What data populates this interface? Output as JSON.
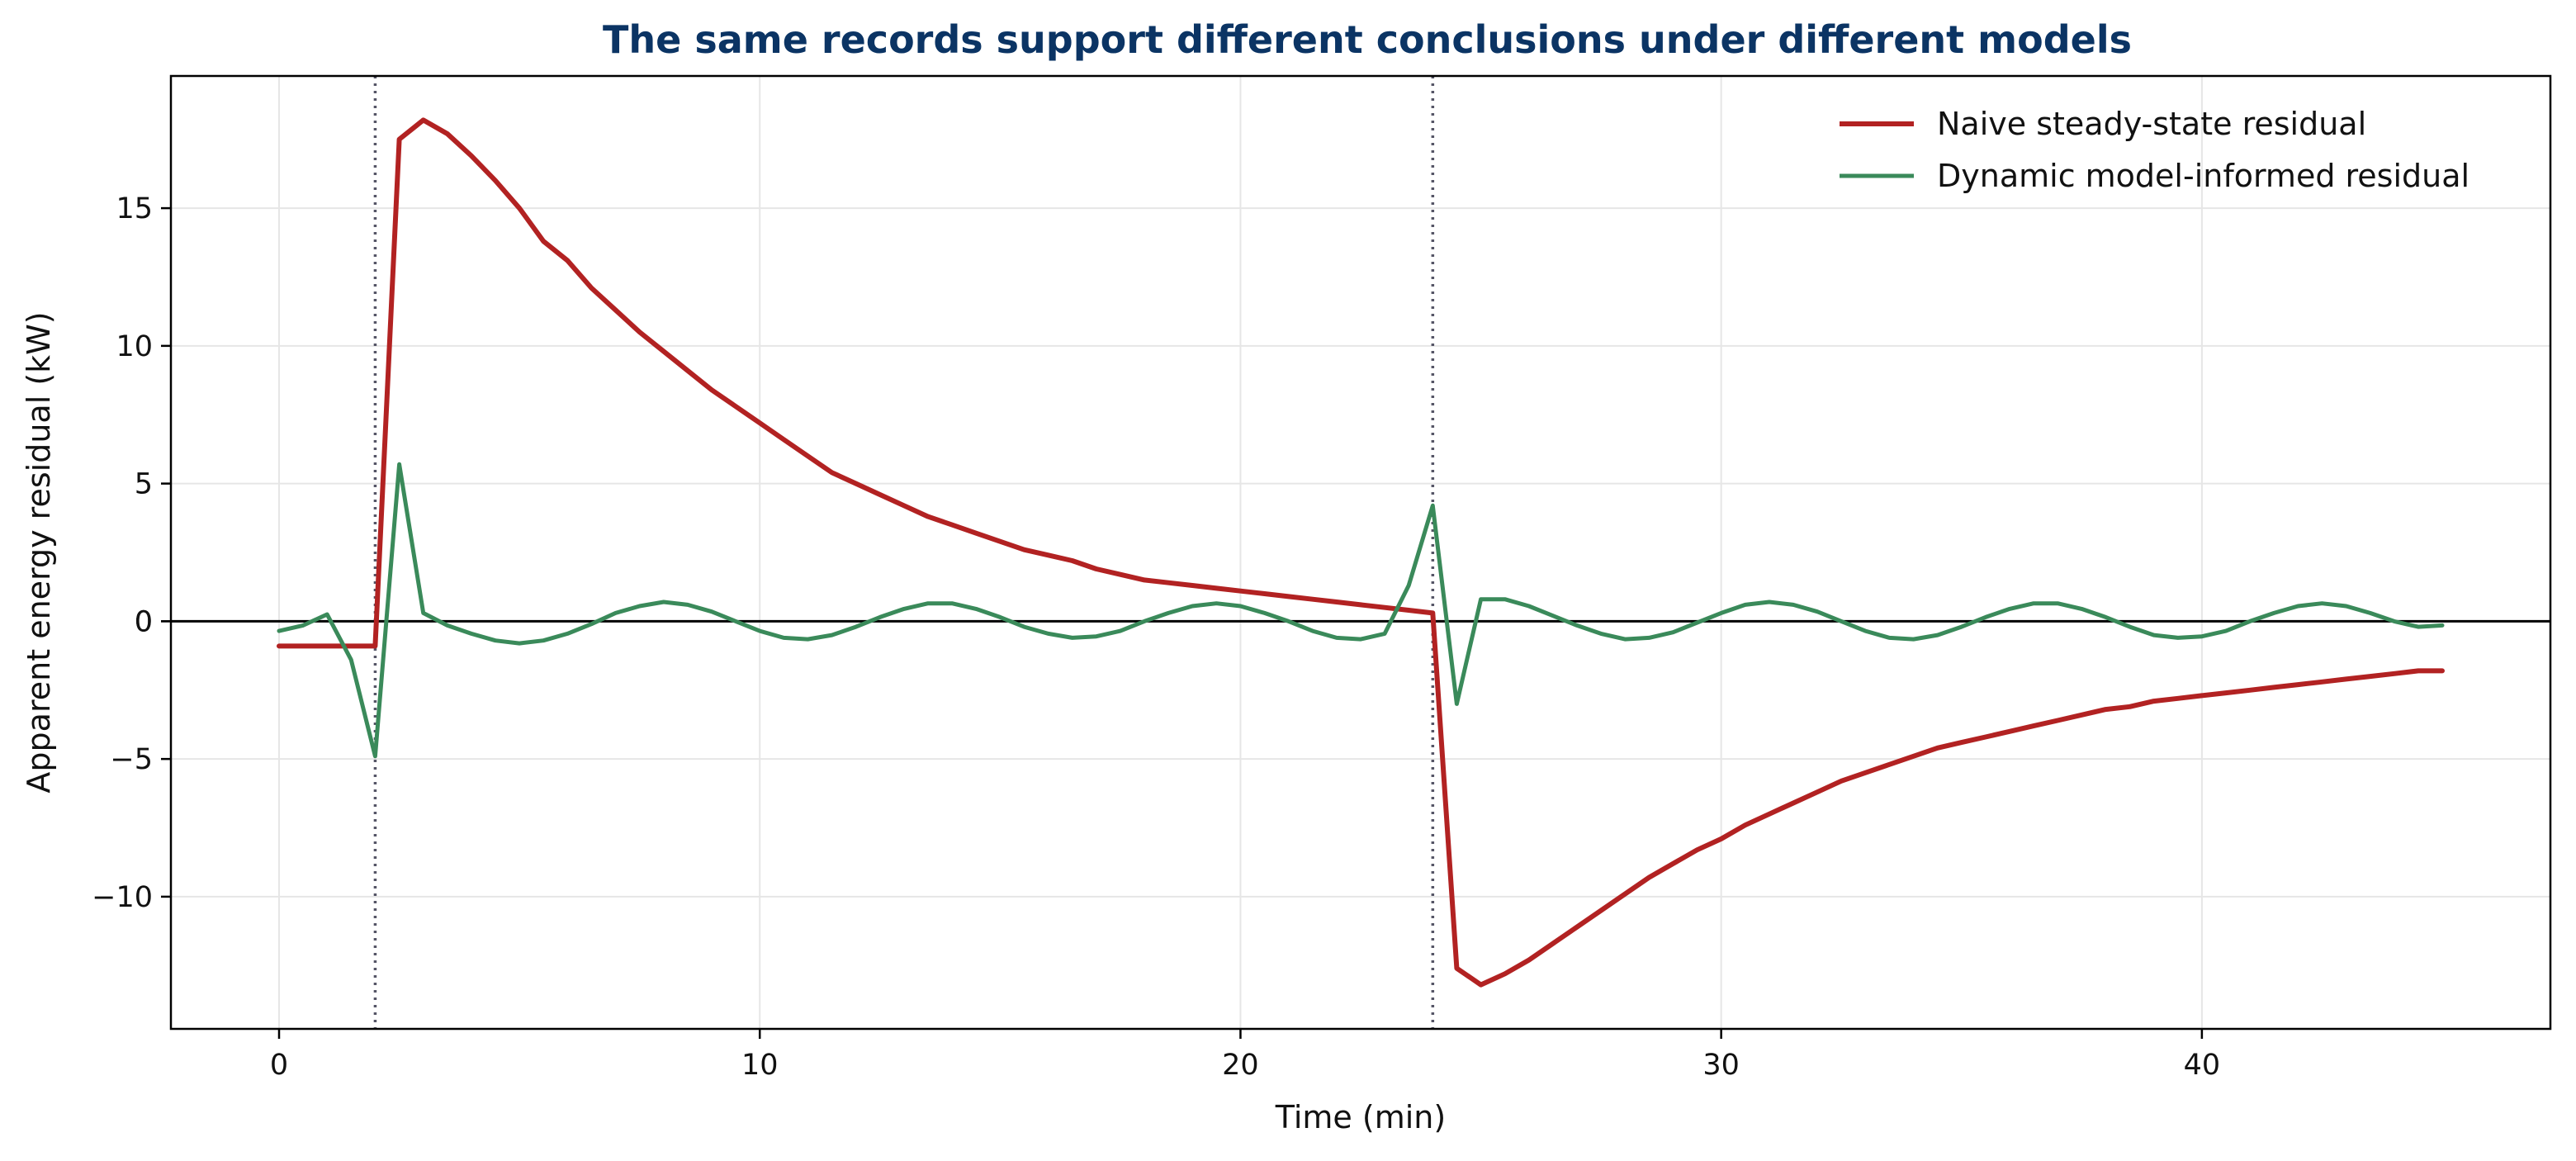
{
  "chart_data": {
    "type": "line",
    "title": "The same records support different conclusions under different models",
    "xlabel": "Time (min)",
    "ylabel": "Apparent energy residual (kW)",
    "xlim": [
      -2.25,
      47.25
    ],
    "ylim": [
      -14.8,
      19.8
    ],
    "xticks": [
      0,
      10,
      20,
      30,
      40
    ],
    "yticks": [
      -10,
      -5,
      0,
      5,
      10,
      15
    ],
    "grid": true,
    "legend_position": "top-right",
    "event_lines_x": [
      2,
      24
    ],
    "zero_line": true,
    "colors": {
      "naive": "#b22222",
      "dynamic": "#3a8a5a",
      "event": "#555566",
      "axis": "#000000",
      "title": "#0b3464"
    },
    "series": [
      {
        "name": "Naive steady-state residual",
        "color": "#b22222",
        "points": [
          [
            0,
            -0.9
          ],
          [
            0.5,
            -0.9
          ],
          [
            1,
            -0.9
          ],
          [
            1.5,
            -0.9
          ],
          [
            2,
            -0.9
          ],
          [
            2.5,
            17.5
          ],
          [
            3,
            18.2
          ],
          [
            3.5,
            17.7
          ],
          [
            4,
            16.9
          ],
          [
            4.5,
            16.0
          ],
          [
            5,
            15.0
          ],
          [
            5.5,
            13.8
          ],
          [
            6,
            13.1
          ],
          [
            6.5,
            12.1
          ],
          [
            7,
            11.3
          ],
          [
            7.5,
            10.5
          ],
          [
            8,
            9.8
          ],
          [
            8.5,
            9.1
          ],
          [
            9,
            8.4
          ],
          [
            9.5,
            7.8
          ],
          [
            10,
            7.2
          ],
          [
            10.5,
            6.6
          ],
          [
            11,
            6.0
          ],
          [
            11.5,
            5.4
          ],
          [
            12,
            5.0
          ],
          [
            12.5,
            4.6
          ],
          [
            13,
            4.2
          ],
          [
            13.5,
            3.8
          ],
          [
            14,
            3.5
          ],
          [
            14.5,
            3.2
          ],
          [
            15,
            2.9
          ],
          [
            15.5,
            2.6
          ],
          [
            16,
            2.4
          ],
          [
            16.5,
            2.2
          ],
          [
            17,
            1.9
          ],
          [
            17.5,
            1.7
          ],
          [
            18,
            1.5
          ],
          [
            18.5,
            1.4
          ],
          [
            19,
            1.3
          ],
          [
            19.5,
            1.2
          ],
          [
            20,
            1.1
          ],
          [
            20.5,
            1.0
          ],
          [
            21,
            0.9
          ],
          [
            21.5,
            0.8
          ],
          [
            22,
            0.7
          ],
          [
            22.5,
            0.6
          ],
          [
            23,
            0.5
          ],
          [
            23.5,
            0.4
          ],
          [
            24,
            0.3
          ],
          [
            24.5,
            -12.6
          ],
          [
            25,
            -13.2
          ],
          [
            25.5,
            -12.8
          ],
          [
            26,
            -12.3
          ],
          [
            26.5,
            -11.7
          ],
          [
            27,
            -11.1
          ],
          [
            27.5,
            -10.5
          ],
          [
            28,
            -9.9
          ],
          [
            28.5,
            -9.3
          ],
          [
            29,
            -8.8
          ],
          [
            29.5,
            -8.3
          ],
          [
            30,
            -7.9
          ],
          [
            30.5,
            -7.4
          ],
          [
            31,
            -7.0
          ],
          [
            31.5,
            -6.6
          ],
          [
            32,
            -6.2
          ],
          [
            32.5,
            -5.8
          ],
          [
            33,
            -5.5
          ],
          [
            33.5,
            -5.2
          ],
          [
            34,
            -4.9
          ],
          [
            34.5,
            -4.6
          ],
          [
            35,
            -4.4
          ],
          [
            35.5,
            -4.2
          ],
          [
            36,
            -4.0
          ],
          [
            36.5,
            -3.8
          ],
          [
            37,
            -3.6
          ],
          [
            37.5,
            -3.4
          ],
          [
            38,
            -3.2
          ],
          [
            38.5,
            -3.1
          ],
          [
            39,
            -2.9
          ],
          [
            39.5,
            -2.8
          ],
          [
            40,
            -2.7
          ],
          [
            40.5,
            -2.6
          ],
          [
            41,
            -2.5
          ],
          [
            41.5,
            -2.4
          ],
          [
            42,
            -2.3
          ],
          [
            42.5,
            -2.2
          ],
          [
            43,
            -2.1
          ],
          [
            43.5,
            -2.0
          ],
          [
            44,
            -1.9
          ],
          [
            44.5,
            -1.8
          ],
          [
            45,
            -1.8
          ]
        ]
      },
      {
        "name": "Dynamic model-informed residual",
        "color": "#3a8a5a",
        "points": [
          [
            0,
            -0.35
          ],
          [
            0.5,
            -0.15
          ],
          [
            1,
            0.25
          ],
          [
            1.5,
            -1.4
          ],
          [
            2,
            -4.9
          ],
          [
            2.5,
            5.7
          ],
          [
            3,
            0.3
          ],
          [
            3.5,
            -0.15
          ],
          [
            4,
            -0.45
          ],
          [
            4.5,
            -0.7
          ],
          [
            5,
            -0.8
          ],
          [
            5.5,
            -0.7
          ],
          [
            6,
            -0.45
          ],
          [
            6.5,
            -0.1
          ],
          [
            7,
            0.3
          ],
          [
            7.5,
            0.55
          ],
          [
            8,
            0.7
          ],
          [
            8.5,
            0.6
          ],
          [
            9,
            0.35
          ],
          [
            9.5,
            0.0
          ],
          [
            10,
            -0.35
          ],
          [
            10.5,
            -0.6
          ],
          [
            11,
            -0.65
          ],
          [
            11.5,
            -0.5
          ],
          [
            12,
            -0.2
          ],
          [
            12.5,
            0.15
          ],
          [
            13,
            0.45
          ],
          [
            13.5,
            0.65
          ],
          [
            14,
            0.65
          ],
          [
            14.5,
            0.45
          ],
          [
            15,
            0.15
          ],
          [
            15.5,
            -0.2
          ],
          [
            16,
            -0.45
          ],
          [
            16.5,
            -0.6
          ],
          [
            17,
            -0.55
          ],
          [
            17.5,
            -0.35
          ],
          [
            18,
            0.0
          ],
          [
            18.5,
            0.3
          ],
          [
            19,
            0.55
          ],
          [
            19.5,
            0.65
          ],
          [
            20,
            0.55
          ],
          [
            20.5,
            0.3
          ],
          [
            21,
            0.0
          ],
          [
            21.5,
            -0.35
          ],
          [
            22,
            -0.6
          ],
          [
            22.5,
            -0.65
          ],
          [
            23,
            -0.45
          ],
          [
            23.5,
            1.3
          ],
          [
            24,
            4.2
          ],
          [
            24.5,
            -3.0
          ],
          [
            25,
            0.8
          ],
          [
            25.5,
            0.8
          ],
          [
            26,
            0.55
          ],
          [
            26.5,
            0.2
          ],
          [
            27,
            -0.15
          ],
          [
            27.5,
            -0.45
          ],
          [
            28,
            -0.65
          ],
          [
            28.5,
            -0.6
          ],
          [
            29,
            -0.4
          ],
          [
            29.5,
            -0.05
          ],
          [
            30,
            0.3
          ],
          [
            30.5,
            0.6
          ],
          [
            31,
            0.7
          ],
          [
            31.5,
            0.6
          ],
          [
            32,
            0.35
          ],
          [
            32.5,
            0.0
          ],
          [
            33,
            -0.35
          ],
          [
            33.5,
            -0.6
          ],
          [
            34,
            -0.65
          ],
          [
            34.5,
            -0.5
          ],
          [
            35,
            -0.2
          ],
          [
            35.5,
            0.15
          ],
          [
            36,
            0.45
          ],
          [
            36.5,
            0.65
          ],
          [
            37,
            0.65
          ],
          [
            37.5,
            0.45
          ],
          [
            38,
            0.15
          ],
          [
            38.5,
            -0.2
          ],
          [
            39,
            -0.5
          ],
          [
            39.5,
            -0.6
          ],
          [
            40,
            -0.55
          ],
          [
            40.5,
            -0.35
          ],
          [
            41,
            0.0
          ],
          [
            41.5,
            0.3
          ],
          [
            42,
            0.55
          ],
          [
            42.5,
            0.65
          ],
          [
            43,
            0.55
          ],
          [
            43.5,
            0.3
          ],
          [
            44,
            0.0
          ],
          [
            44.5,
            -0.2
          ],
          [
            45,
            -0.15
          ]
        ]
      }
    ]
  }
}
